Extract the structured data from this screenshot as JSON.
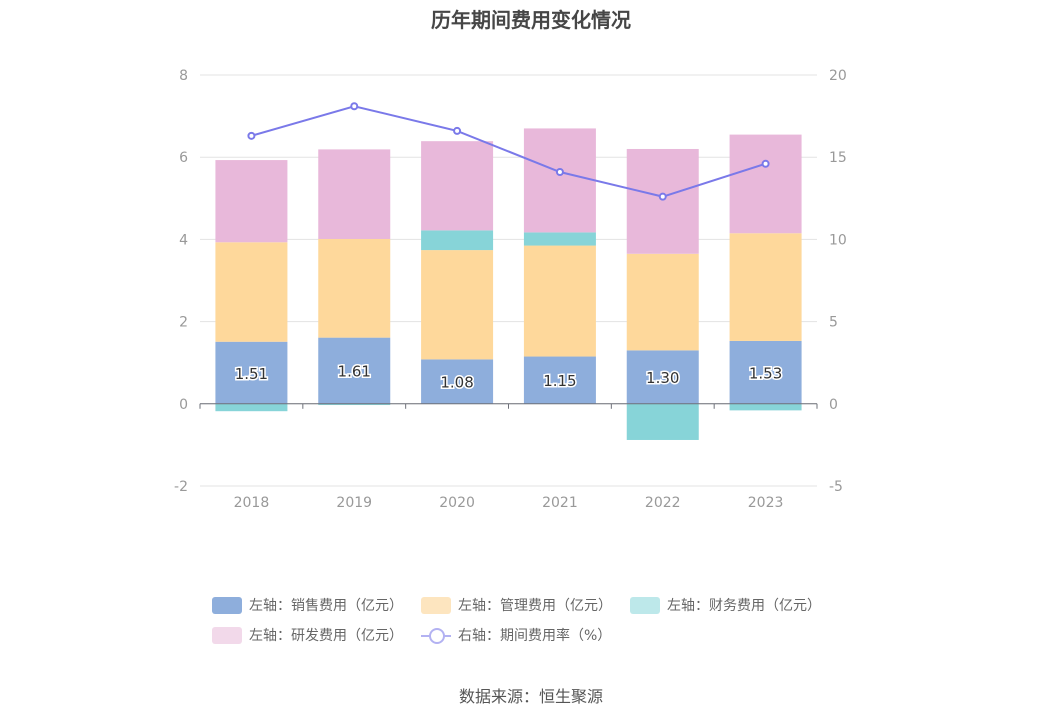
{
  "chart_data": {
    "type": "bar",
    "title": "历年期间费用变化情况",
    "categories": [
      "2018",
      "2019",
      "2020",
      "2021",
      "2022",
      "2023"
    ],
    "stacked": true,
    "y_left": {
      "ylim": [
        -2,
        8
      ],
      "ticks": [
        "-2",
        "0",
        "2",
        "4",
        "6",
        "8"
      ]
    },
    "y_right": {
      "ylim": [
        -5,
        20
      ],
      "ticks": [
        "-5",
        "0",
        "5",
        "10",
        "15",
        "20"
      ]
    },
    "grid": true,
    "legend_position": "bottom",
    "series": [
      {
        "name": "左轴：销售费用（亿元）",
        "axis": "left",
        "type": "bar",
        "color": "#8eaedc",
        "values": [
          1.51,
          1.61,
          1.08,
          1.15,
          1.3,
          1.53
        ],
        "labels": [
          "1.51",
          "1.61",
          "1.08",
          "1.15",
          "1.30",
          "1.53"
        ]
      },
      {
        "name": "左轴：管理费用（亿元）",
        "axis": "left",
        "type": "bar",
        "color": "#fed89b",
        "values": [
          2.42,
          2.4,
          2.66,
          2.7,
          2.35,
          2.62
        ]
      },
      {
        "name": "左轴：财务费用（亿元）",
        "axis": "left",
        "type": "bar",
        "color": "#87d4d8",
        "values": [
          -0.18,
          -0.03,
          0.48,
          0.32,
          -0.88,
          -0.16
        ]
      },
      {
        "name": "左轴：研发费用（亿元）",
        "axis": "left",
        "type": "bar",
        "color": "#e8b8da",
        "values": [
          2.0,
          2.18,
          2.17,
          2.53,
          2.55,
          2.4
        ]
      },
      {
        "name": "右轴：期间费用率（%）",
        "axis": "right",
        "type": "line",
        "color": "#7a79e9",
        "values": [
          16.3,
          18.1,
          16.6,
          14.1,
          12.6,
          14.6
        ]
      }
    ]
  },
  "legend": {
    "items": [
      {
        "label": "左轴：销售费用（亿元）",
        "color": "#8eaedc"
      },
      {
        "label": "左轴：管理费用（亿元）",
        "color": "#fde5bf"
      },
      {
        "label": "左轴：财务费用（亿元）",
        "color": "#bde8ea"
      },
      {
        "label": "左轴：研发费用（亿元）",
        "color": "#f2d9ea"
      },
      {
        "label": "右轴：期间费用率（%）",
        "color": "#b3b2f2"
      }
    ]
  },
  "source": "数据来源：恒生聚源"
}
